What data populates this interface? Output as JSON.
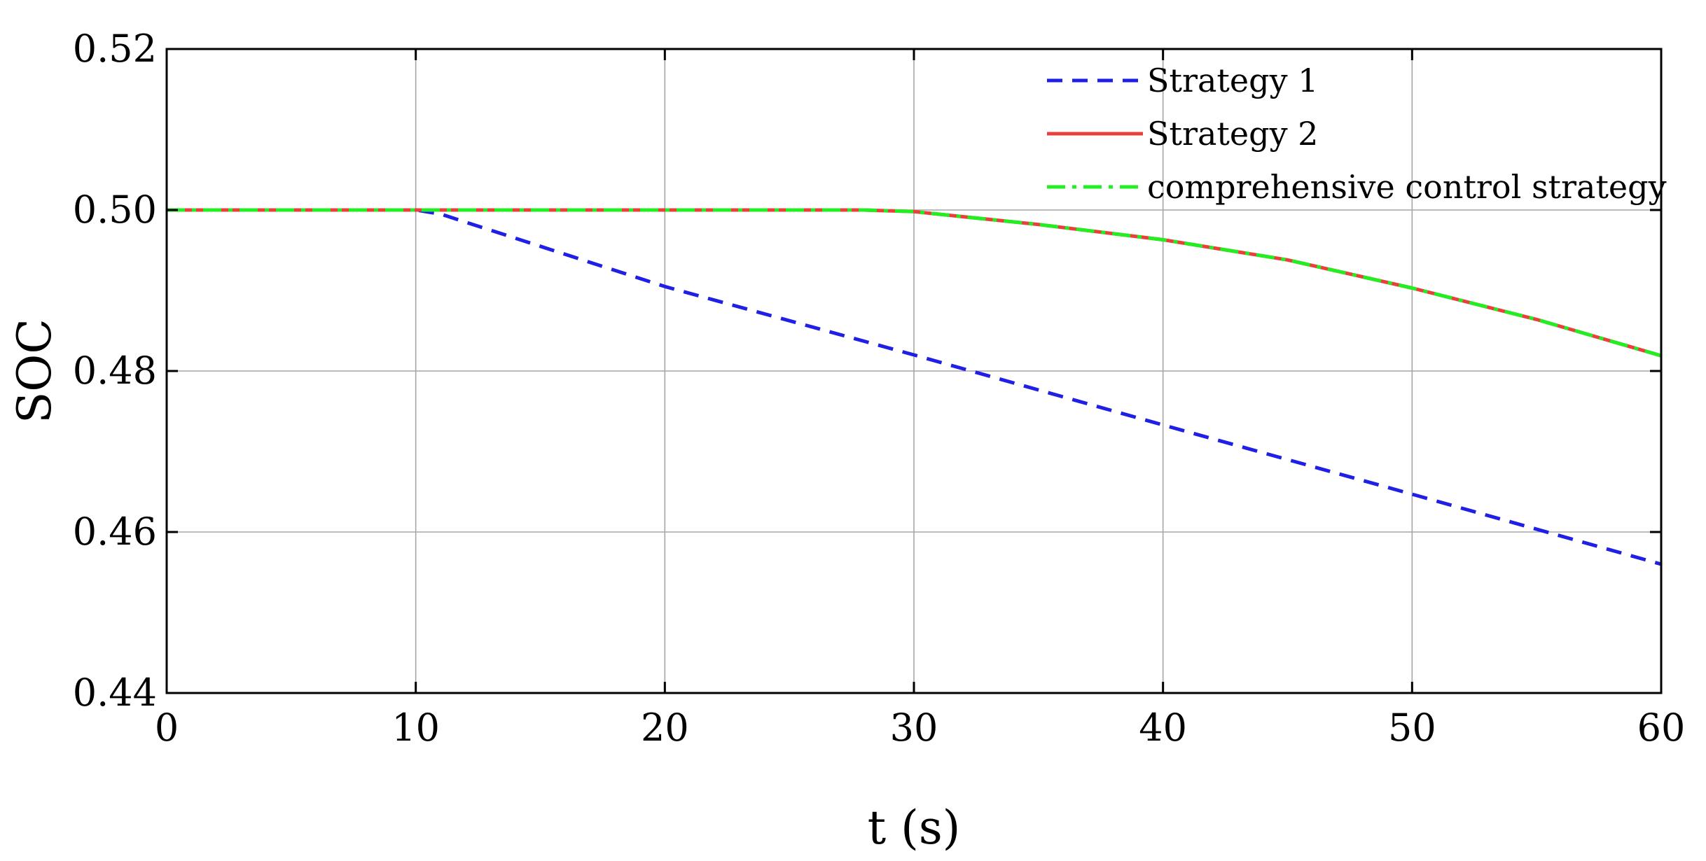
{
  "chart_data": {
    "type": "line",
    "xlabel": "t (s)",
    "ylabel": "SOC",
    "xlim": [
      0,
      60
    ],
    "ylim": [
      0.44,
      0.52
    ],
    "xticks": [
      0,
      10,
      20,
      30,
      40,
      50,
      60
    ],
    "yticks": [
      0.44,
      0.46,
      0.48,
      0.5,
      0.52
    ],
    "grid": true,
    "legend": "top-right",
    "series": [
      {
        "name": "Strategy 1",
        "color": "#1f1fe6",
        "style": "dashed",
        "x": [
          0,
          10,
          11,
          20,
          30,
          40,
          50,
          60
        ],
        "y": [
          0.5,
          0.5,
          0.4995,
          0.4905,
          0.482,
          0.4733,
          0.4647,
          0.456
        ]
      },
      {
        "name": "Strategy 2",
        "color": "#e8413c",
        "style": "solid",
        "x": [
          0,
          10,
          20,
          28,
          30,
          35,
          40,
          45,
          50,
          55,
          60
        ],
        "y": [
          0.5,
          0.5,
          0.5,
          0.5,
          0.4998,
          0.4982,
          0.4963,
          0.4938,
          0.4903,
          0.4864,
          0.4819
        ]
      },
      {
        "name": "comprehensive control strategy",
        "color": "#22ee22",
        "style": "dashdot",
        "x": [
          0,
          10,
          20,
          28,
          30,
          35,
          40,
          45,
          50,
          55,
          60
        ],
        "y": [
          0.5,
          0.5,
          0.5,
          0.5,
          0.4998,
          0.4982,
          0.4963,
          0.4938,
          0.4903,
          0.4864,
          0.4819
        ]
      }
    ]
  }
}
